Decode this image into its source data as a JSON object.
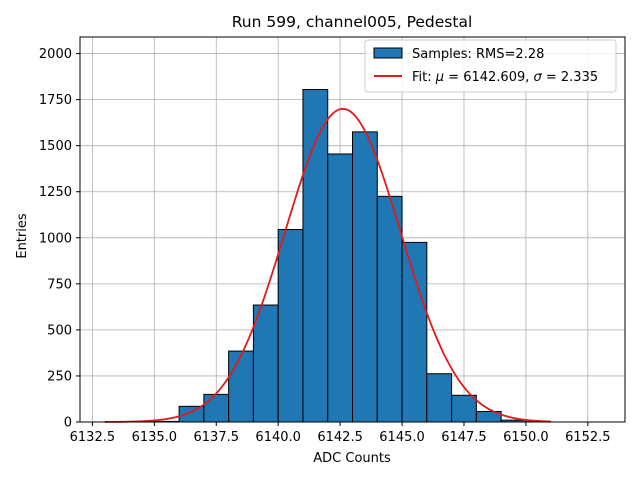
{
  "chart_data": {
    "type": "bar",
    "title": "Run 599, channel005, Pedestal",
    "xlabel": "ADC Counts",
    "ylabel": "Entries",
    "xlim": [
      6132.0,
      6154.0
    ],
    "ylim": [
      0,
      2090
    ],
    "xticks": [
      6132.5,
      6135.0,
      6137.5,
      6140.0,
      6142.5,
      6145.0,
      6147.5,
      6150.0,
      6152.5
    ],
    "xtick_labels": [
      "6132.5",
      "6135.0",
      "6137.5",
      "6140.0",
      "6142.5",
      "6145.0",
      "6147.5",
      "6150.0",
      "6152.5"
    ],
    "yticks": [
      0,
      250,
      500,
      750,
      1000,
      1250,
      1500,
      1750,
      2000
    ],
    "ytick_labels": [
      "0",
      "250",
      "500",
      "750",
      "1000",
      "1250",
      "1500",
      "1750",
      "2000"
    ],
    "grid": true,
    "legend_position": "top-right",
    "histogram": {
      "name": "Samples: RMS=2.28",
      "bin_edges": [
        6134,
        6135,
        6136,
        6137,
        6138,
        6139,
        6140,
        6141,
        6142,
        6143,
        6144,
        6145,
        6146,
        6147,
        6148,
        6149,
        6150,
        6151
      ],
      "counts": [
        2,
        3,
        85,
        150,
        385,
        635,
        1045,
        1805,
        1455,
        1575,
        1225,
        975,
        262,
        145,
        57,
        10,
        2
      ],
      "fill_color": "#1f77b4",
      "edge_color": "#000000"
    },
    "fit": {
      "name_prefix": "Fit: ",
      "mu_symbol": "μ",
      "mu_text": " = 6142.609, ",
      "sigma_symbol": "σ",
      "sigma_text": " = 2.335",
      "mu": 6142.609,
      "sigma": 2.335,
      "amplitude": 1700,
      "x_range": [
        6133.0,
        6151.0
      ],
      "color": "#e31a1c"
    }
  }
}
